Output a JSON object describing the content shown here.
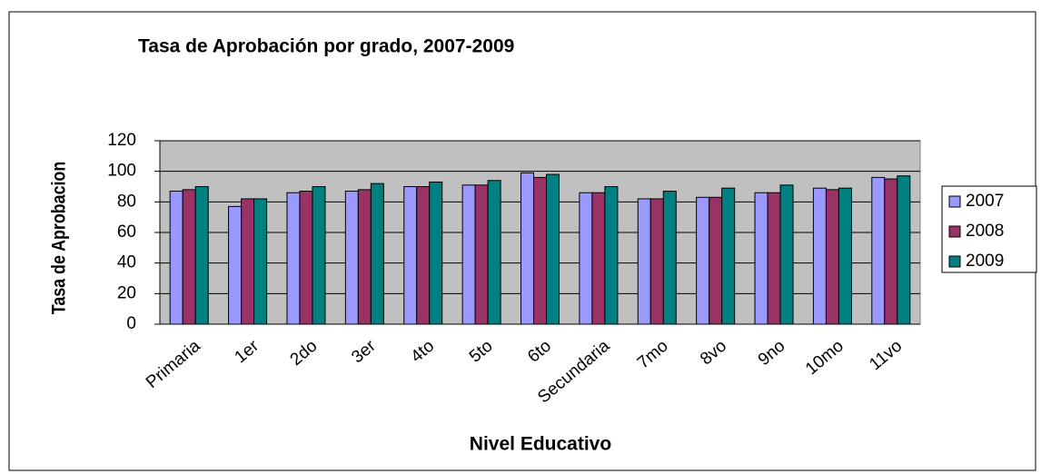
{
  "chart_data": {
    "type": "bar",
    "title": "Tasa de Aprobación por grado,  2007-2009",
    "x_label": "Nivel Educativo",
    "y_label": "Tasa de Aprobacion",
    "categories": [
      "Primaria",
      "1er",
      "2do",
      "3er",
      "4to",
      "5to",
      "6to",
      "Secundaria",
      "7mo",
      "8vo",
      "9no",
      "10mo",
      "11vo"
    ],
    "series": [
      {
        "name": "2007",
        "color": "#9999ff",
        "values": [
          87,
          77,
          86,
          87,
          90,
          91,
          99,
          86,
          82,
          83,
          86,
          89,
          96
        ]
      },
      {
        "name": "2008",
        "color": "#993366",
        "values": [
          88,
          82,
          87,
          88,
          90,
          91,
          96,
          86,
          82,
          83,
          86,
          88,
          95
        ]
      },
      {
        "name": "2009",
        "color": "#008080",
        "values": [
          90,
          82,
          90,
          92,
          93,
          94,
          98,
          90,
          87,
          89,
          91,
          89,
          97
        ]
      }
    ],
    "ylim": [
      0,
      120
    ],
    "yticks": [
      0,
      20,
      40,
      60,
      80,
      100,
      120
    ],
    "grid": true,
    "legend": "right"
  }
}
